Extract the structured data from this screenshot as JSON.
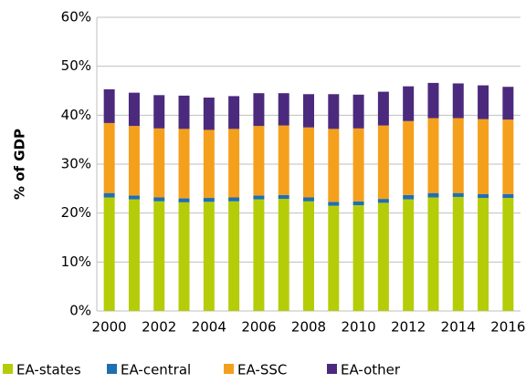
{
  "chart_data": {
    "type": "stacked_bar",
    "y_label": "% of GDP",
    "categories": [
      "2000",
      null,
      "2002",
      null,
      "2004",
      null,
      "2006",
      null,
      "2008",
      null,
      "2010",
      null,
      "2012",
      null,
      "2014",
      null,
      "2016"
    ],
    "series": [
      {
        "name": "EA-states",
        "color": "#b5cd08",
        "values": [
          23.2,
          22.8,
          22.4,
          22.2,
          22.3,
          22.4,
          22.8,
          22.9,
          22.4,
          21.5,
          21.6,
          22.1,
          22.8,
          23.2,
          23.3,
          23.1,
          23.1
        ]
      },
      {
        "name": "EA-central",
        "color": "#1f6fb1",
        "values": [
          0.9,
          0.8,
          0.8,
          0.8,
          0.8,
          0.8,
          0.8,
          0.8,
          0.8,
          0.8,
          0.8,
          0.8,
          0.9,
          0.9,
          0.8,
          0.8,
          0.8
        ]
      },
      {
        "name": "EA-SSC",
        "color": "#f5a01c",
        "values": [
          14.3,
          14.2,
          14.1,
          14.2,
          13.9,
          14.0,
          14.2,
          14.2,
          14.3,
          14.9,
          14.9,
          15.0,
          15.1,
          15.3,
          15.3,
          15.3,
          15.2
        ]
      },
      {
        "name": "EA-other",
        "color": "#4b2a7e",
        "values": [
          6.9,
          6.8,
          6.8,
          6.8,
          6.6,
          6.7,
          6.7,
          6.6,
          6.8,
          7.1,
          6.9,
          6.9,
          7.1,
          7.2,
          7.1,
          6.9,
          6.7
        ]
      }
    ],
    "ylim": [
      0,
      60
    ],
    "yticks": [
      {
        "value": 0,
        "label": "0%"
      },
      {
        "value": 10,
        "label": "10%"
      },
      {
        "value": 20,
        "label": "20%"
      },
      {
        "value": 30,
        "label": "30%"
      },
      {
        "value": 40,
        "label": "40%"
      },
      {
        "value": 50,
        "label": "50%"
      },
      {
        "value": 60,
        "label": "60%"
      }
    ],
    "grid": true,
    "legend": "bottom"
  }
}
